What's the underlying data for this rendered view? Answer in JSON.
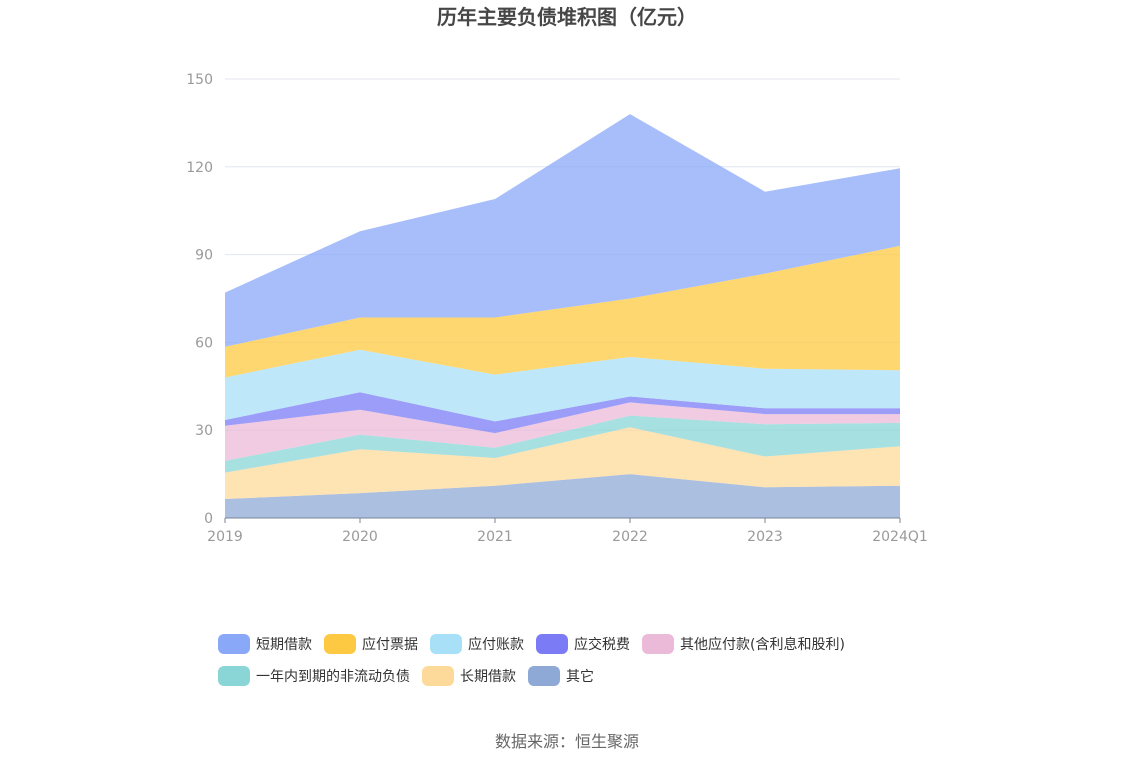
{
  "title": "历年主要负债堆积图（亿元）",
  "source": "数据来源：恒生聚源",
  "chart_data": {
    "type": "area",
    "stacked": true,
    "categories": [
      "2019",
      "2020",
      "2021",
      "2022",
      "2023",
      "2024Q1"
    ],
    "ylim": [
      0,
      150
    ],
    "yticks": [
      0,
      30,
      60,
      90,
      120,
      150
    ],
    "grid": true,
    "legend_position": "bottom",
    "series": [
      {
        "name": "其它",
        "color": "#8fa9d6",
        "values": [
          6.5,
          8.5,
          11,
          15,
          10.5,
          11
        ]
      },
      {
        "name": "长期借款",
        "color": "#fdd99a",
        "values": [
          9,
          15,
          9.5,
          16,
          10.5,
          13.5
        ]
      },
      {
        "name": "一年内到期的非流动负债",
        "color": "#8ad6d6",
        "values": [
          4,
          5,
          3.5,
          4,
          11,
          8
        ]
      },
      {
        "name": "其他应付款(含利息和股利)",
        "color": "#ebbad8",
        "values": [
          12,
          8.5,
          5,
          4.5,
          3.5,
          3
        ]
      },
      {
        "name": "应交税费",
        "color": "#7b7cf5",
        "values": [
          2,
          6,
          4,
          2,
          2,
          2
        ]
      },
      {
        "name": "应付账款",
        "color": "#a8e0f8",
        "values": [
          14.5,
          14.5,
          16,
          13.5,
          13.5,
          13
        ]
      },
      {
        "name": "应付票据",
        "color": "#fec942",
        "values": [
          10.5,
          11,
          19.5,
          20,
          32.5,
          42.5
        ]
      },
      {
        "name": "短期借款",
        "color": "#8aa8f8",
        "values": [
          18.5,
          29.5,
          40.5,
          63,
          28,
          26.5
        ]
      }
    ]
  }
}
